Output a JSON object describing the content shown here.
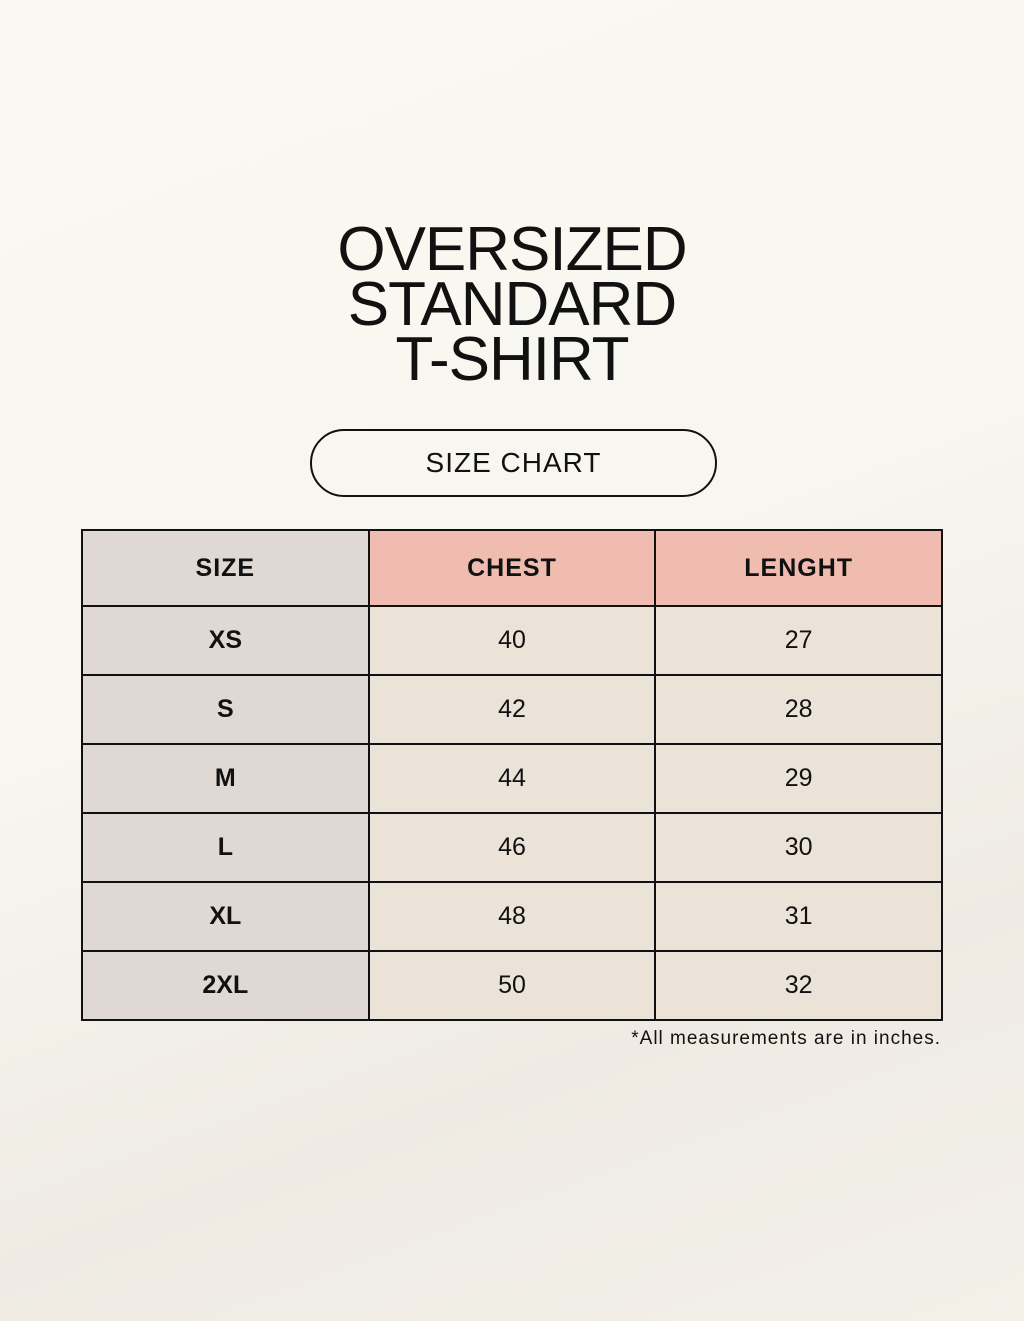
{
  "title_lines": [
    "OVERSIZED",
    "STANDARD",
    "T-SHIRT"
  ],
  "subtitle": "SIZE CHART",
  "table": {
    "headers": [
      "SIZE",
      "CHEST",
      "LENGHT"
    ],
    "rows": [
      [
        "XS",
        "40",
        "27"
      ],
      [
        "S",
        "42",
        "28"
      ],
      [
        "M",
        "44",
        "29"
      ],
      [
        "L",
        "46",
        "30"
      ],
      [
        "XL",
        "48",
        "31"
      ],
      [
        "2XL",
        "50",
        "32"
      ]
    ]
  },
  "footnote": "*All measurements are in inches.",
  "colors": {
    "header_accent": "#efbcaf",
    "size_column": "#e0d9d3",
    "cell": "#ebe3d8"
  }
}
